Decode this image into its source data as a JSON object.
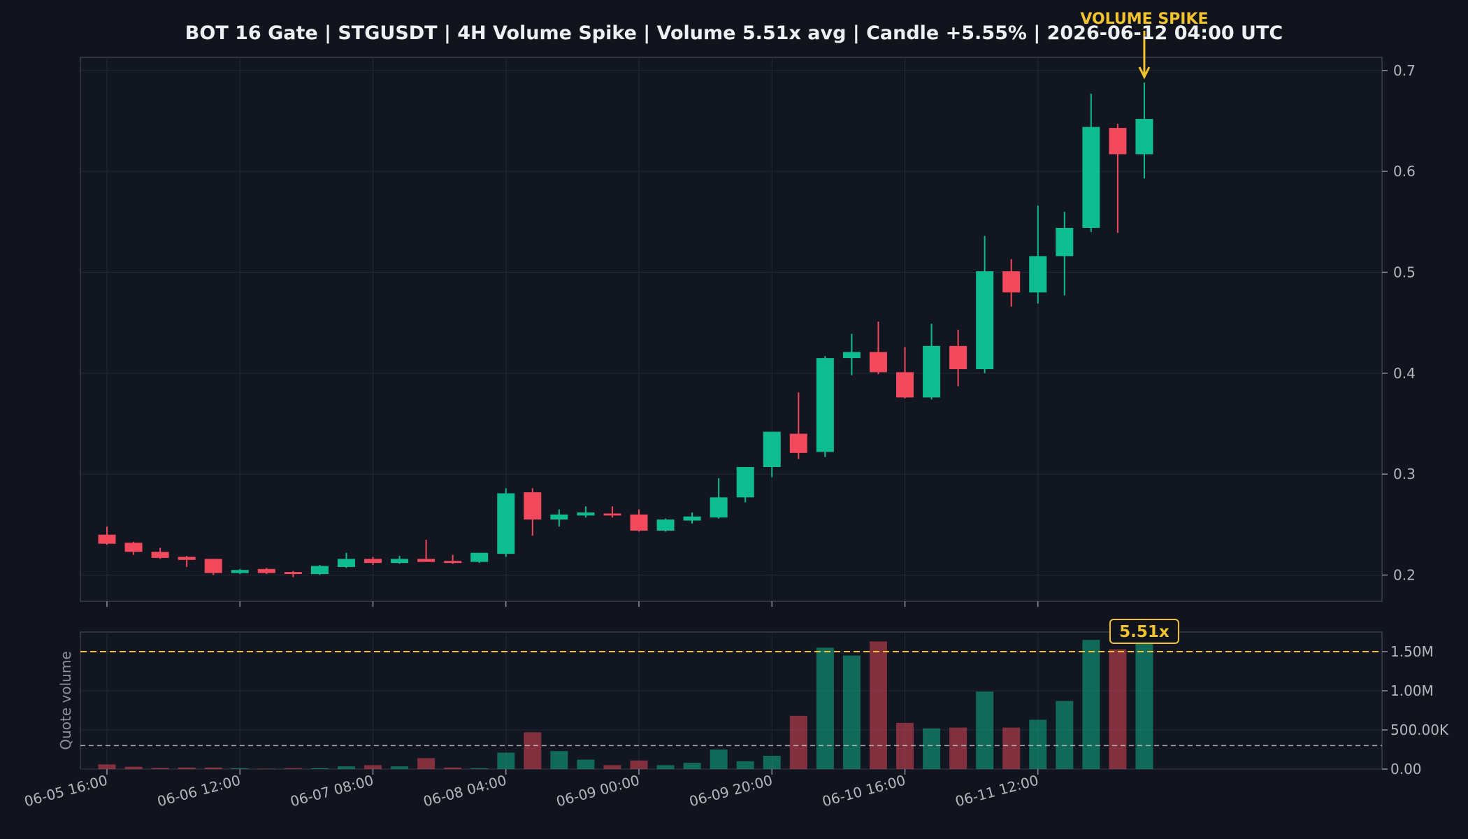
{
  "chart_data": {
    "type": "candlestick",
    "title": "BOT 16 Gate | STGUSDT | 4H Volume Spike | Volume 5.51x avg | Candle +5.55% | 2026-06-12 04:00 UTC",
    "x_tick_labels": [
      "06-05 16:00",
      "06-06 12:00",
      "06-07 08:00",
      "06-08 04:00",
      "06-09 00:00",
      "06-09 20:00",
      "06-10 16:00",
      "06-11 12:00"
    ],
    "price_ticks": [
      "0.2",
      "0.3",
      "0.4",
      "0.5",
      "0.6",
      "0.7"
    ],
    "volume_ticks": [
      "0.00",
      "500.00K",
      "1.00M",
      "1.50M"
    ],
    "volume_ylabel": "Quote volume",
    "annotation": {
      "label": "VOLUME SPIKE",
      "badge": "5.51x"
    },
    "ylim": [
      0.174,
      0.713
    ],
    "volume_ylim": [
      0,
      1.75
    ],
    "volume_avg_line": 0.3,
    "volume_threshold_line": 1.5,
    "grid": true,
    "colors": {
      "up": "#0ebc91",
      "down": "#f2495c",
      "accent": "#f2c230",
      "background": "#11141c"
    },
    "candles": [
      {
        "o": 0.24,
        "h": 0.248,
        "l": 0.23,
        "c": 0.231,
        "v": 0.06
      },
      {
        "o": 0.232,
        "h": 0.233,
        "l": 0.22,
        "c": 0.223,
        "v": 0.03
      },
      {
        "o": 0.223,
        "h": 0.227,
        "l": 0.216,
        "c": 0.217,
        "v": 0.015
      },
      {
        "o": 0.218,
        "h": 0.219,
        "l": 0.208,
        "c": 0.215,
        "v": 0.02
      },
      {
        "o": 0.216,
        "h": 0.216,
        "l": 0.2,
        "c": 0.202,
        "v": 0.02
      },
      {
        "o": 0.202,
        "h": 0.206,
        "l": 0.201,
        "c": 0.205,
        "v": 0.01
      },
      {
        "o": 0.206,
        "h": 0.207,
        "l": 0.201,
        "c": 0.202,
        "v": 0.005
      },
      {
        "o": 0.203,
        "h": 0.204,
        "l": 0.198,
        "c": 0.201,
        "v": 0.01
      },
      {
        "o": 0.201,
        "h": 0.21,
        "l": 0.2,
        "c": 0.209,
        "v": 0.012
      },
      {
        "o": 0.208,
        "h": 0.222,
        "l": 0.207,
        "c": 0.216,
        "v": 0.035
      },
      {
        "o": 0.216,
        "h": 0.218,
        "l": 0.21,
        "c": 0.212,
        "v": 0.05
      },
      {
        "o": 0.212,
        "h": 0.219,
        "l": 0.211,
        "c": 0.216,
        "v": 0.035
      },
      {
        "o": 0.216,
        "h": 0.235,
        "l": 0.213,
        "c": 0.213,
        "v": 0.14
      },
      {
        "o": 0.214,
        "h": 0.22,
        "l": 0.211,
        "c": 0.212,
        "v": 0.02
      },
      {
        "o": 0.213,
        "h": 0.222,
        "l": 0.212,
        "c": 0.222,
        "v": 0.01
      },
      {
        "o": 0.221,
        "h": 0.286,
        "l": 0.218,
        "c": 0.281,
        "v": 0.21
      },
      {
        "o": 0.282,
        "h": 0.286,
        "l": 0.239,
        "c": 0.255,
        "v": 0.47
      },
      {
        "o": 0.255,
        "h": 0.265,
        "l": 0.248,
        "c": 0.26,
        "v": 0.23
      },
      {
        "o": 0.259,
        "h": 0.268,
        "l": 0.257,
        "c": 0.262,
        "v": 0.12
      },
      {
        "o": 0.261,
        "h": 0.268,
        "l": 0.257,
        "c": 0.259,
        "v": 0.05
      },
      {
        "o": 0.26,
        "h": 0.265,
        "l": 0.243,
        "c": 0.244,
        "v": 0.11
      },
      {
        "o": 0.244,
        "h": 0.256,
        "l": 0.243,
        "c": 0.255,
        "v": 0.05
      },
      {
        "o": 0.254,
        "h": 0.262,
        "l": 0.251,
        "c": 0.258,
        "v": 0.08
      },
      {
        "o": 0.257,
        "h": 0.296,
        "l": 0.256,
        "c": 0.277,
        "v": 0.25
      },
      {
        "o": 0.277,
        "h": 0.307,
        "l": 0.272,
        "c": 0.307,
        "v": 0.1
      },
      {
        "o": 0.307,
        "h": 0.342,
        "l": 0.297,
        "c": 0.342,
        "v": 0.17
      },
      {
        "o": 0.34,
        "h": 0.381,
        "l": 0.315,
        "c": 0.321,
        "v": 0.68
      },
      {
        "o": 0.322,
        "h": 0.417,
        "l": 0.317,
        "c": 0.415,
        "v": 1.55
      },
      {
        "o": 0.415,
        "h": 0.439,
        "l": 0.398,
        "c": 0.421,
        "v": 1.45
      },
      {
        "o": 0.421,
        "h": 0.451,
        "l": 0.399,
        "c": 0.401,
        "v": 1.63
      },
      {
        "o": 0.401,
        "h": 0.426,
        "l": 0.375,
        "c": 0.376,
        "v": 0.59
      },
      {
        "o": 0.376,
        "h": 0.449,
        "l": 0.374,
        "c": 0.427,
        "v": 0.52
      },
      {
        "o": 0.427,
        "h": 0.443,
        "l": 0.387,
        "c": 0.404,
        "v": 0.53
      },
      {
        "o": 0.404,
        "h": 0.536,
        "l": 0.4,
        "c": 0.501,
        "v": 0.99
      },
      {
        "o": 0.501,
        "h": 0.513,
        "l": 0.466,
        "c": 0.48,
        "v": 0.53
      },
      {
        "o": 0.48,
        "h": 0.566,
        "l": 0.469,
        "c": 0.516,
        "v": 0.63
      },
      {
        "o": 0.516,
        "h": 0.56,
        "l": 0.477,
        "c": 0.544,
        "v": 0.87
      },
      {
        "o": 0.544,
        "h": 0.677,
        "l": 0.54,
        "c": 0.644,
        "v": 1.65
      },
      {
        "o": 0.643,
        "h": 0.647,
        "l": 0.539,
        "c": 0.617,
        "v": 1.53
      },
      {
        "o": 0.617,
        "h": 0.688,
        "l": 0.593,
        "c": 0.652,
        "v": 1.62
      }
    ]
  }
}
